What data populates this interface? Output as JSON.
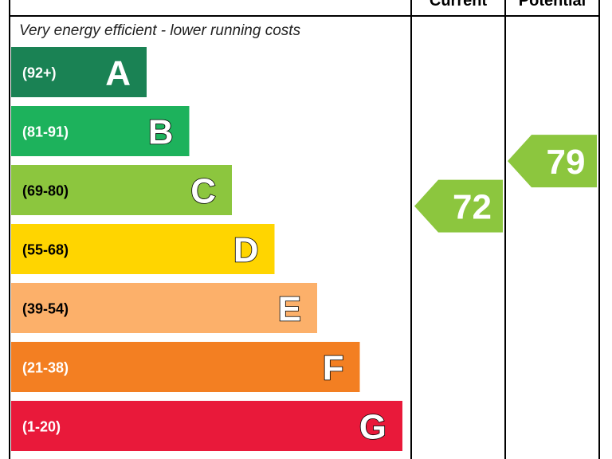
{
  "chart_data": {
    "type": "bar",
    "headers": {
      "current": "Current",
      "potential": "Potential"
    },
    "top_note": "Very energy efficient - lower running costs",
    "bands": [
      {
        "letter": "A",
        "range": "(92+)",
        "color": "#1a8254",
        "min": 92
      },
      {
        "letter": "B",
        "range": "(81-91)",
        "color": "#1db25c",
        "min": 81
      },
      {
        "letter": "C",
        "range": "(69-80)",
        "color": "#8cc63e",
        "min": 69
      },
      {
        "letter": "D",
        "range": "(55-68)",
        "color": "#ffd500",
        "min": 55
      },
      {
        "letter": "E",
        "range": "(39-54)",
        "color": "#fcb06a",
        "min": 39
      },
      {
        "letter": "F",
        "range": "(21-38)",
        "color": "#f37f22",
        "min": 21
      },
      {
        "letter": "G",
        "range": "(1-20)",
        "color": "#e9193a",
        "min": 1
      }
    ],
    "current": {
      "value": 72,
      "band": "C",
      "color": "#8cc63e"
    },
    "potential": {
      "value": 79,
      "band": "C",
      "color": "#8cc63e"
    }
  }
}
